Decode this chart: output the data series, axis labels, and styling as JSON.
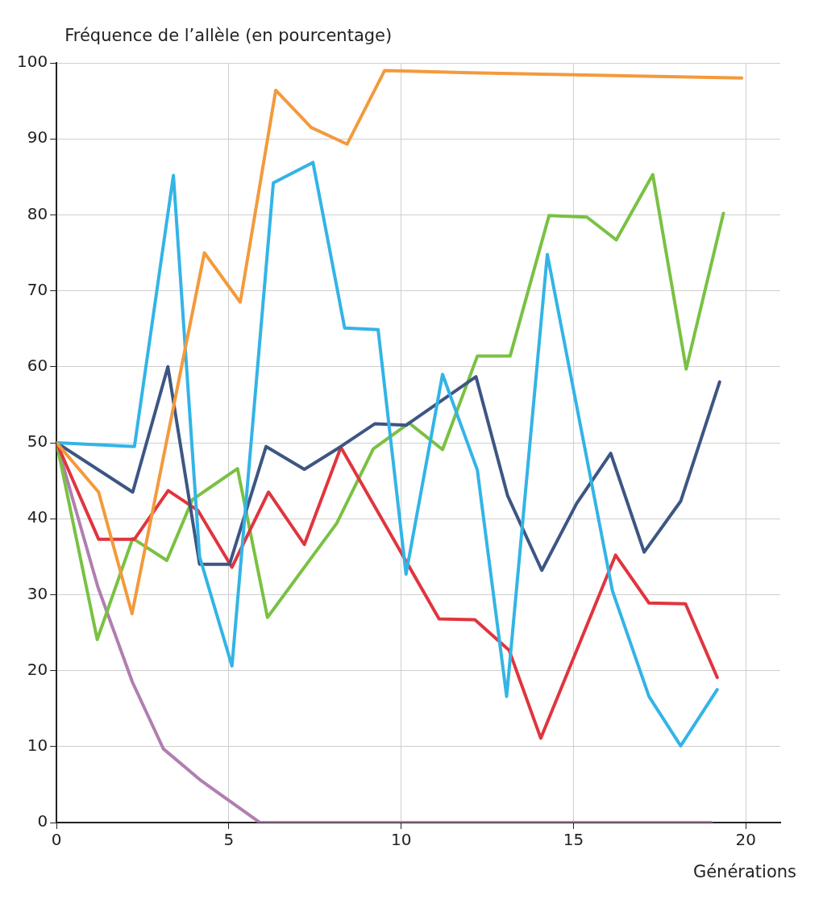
{
  "chart_data": {
    "type": "line",
    "ylabel": "Fréquence de l’allèle (en pourcentage)",
    "xlabel": "Générations",
    "xlim": [
      0,
      21
    ],
    "xticks": [
      0,
      5,
      10,
      15,
      20
    ],
    "ylim": [
      0,
      100
    ],
    "yticks": [
      0,
      10,
      20,
      30,
      40,
      50,
      60,
      70,
      80,
      90,
      100
    ],
    "grid": true,
    "line_style": "solid",
    "marker": "none",
    "legend": false,
    "series": [
      {
        "color": "#f39a3c",
        "x": [
          0,
          1.22,
          2.19,
          4.29,
          5.33,
          6.36,
          7.39,
          8.43,
          9.52,
          12,
          19.88
        ],
        "values": [
          50,
          43.5,
          27.5,
          75,
          68.5,
          96.4,
          91.5,
          89.3,
          99,
          98.7,
          98
        ]
      },
      {
        "color": "#33b4e6",
        "x": [
          0,
          2.26,
          3.39,
          4.15,
          5.09,
          6.29,
          7.44,
          8.36,
          9.33,
          10.14,
          11.2,
          12.21,
          13.06,
          14.24,
          16.13,
          17.19,
          18.11,
          19.17
        ],
        "values": [
          50,
          49.5,
          85.2,
          35,
          20.6,
          84.2,
          86.9,
          65.1,
          64.9,
          32.7,
          59,
          46.4,
          16.6,
          74.8,
          30.5,
          16.6,
          10.1,
          17.5
        ]
      },
      {
        "color": "#3d5683",
        "x": [
          0,
          2.21,
          3.23,
          4.15,
          5.02,
          6.08,
          7.19,
          8.25,
          9.24,
          10.14,
          12.17,
          13.09,
          14.08,
          15.09,
          16.08,
          17.05,
          18.11,
          19.24
        ],
        "values": [
          50,
          43.5,
          60,
          34,
          34,
          49.5,
          46.5,
          49.5,
          52.5,
          52.3,
          58.7,
          43,
          33.2,
          42,
          48.6,
          35.6,
          42.3,
          58
        ]
      },
      {
        "color": "#e0353f",
        "x": [
          0,
          1.22,
          2.26,
          3.24,
          4.1,
          5.09,
          6.15,
          7.19,
          8.25,
          11.1,
          12.14,
          13.13,
          14.05,
          16.22,
          17.19,
          18.25,
          19.17
        ],
        "values": [
          50,
          37.3,
          37.3,
          43.7,
          41.1,
          33.6,
          43.5,
          36.6,
          49.4,
          26.8,
          26.7,
          22.7,
          11.1,
          35.2,
          28.9,
          28.8,
          19.1
        ]
      },
      {
        "color": "#7ac143",
        "x": [
          0,
          1.18,
          2.21,
          3.2,
          3.94,
          5.25,
          6.12,
          8.13,
          9.19,
          10.23,
          11.2,
          12.21,
          13.16,
          14.29,
          15.39,
          16.24,
          17.3,
          18.27,
          19.35
        ],
        "values": [
          50,
          24.1,
          37.4,
          34.5,
          42.5,
          46.6,
          27,
          39.4,
          49.2,
          52.6,
          49.1,
          61.4,
          61.4,
          79.9,
          79.7,
          76.7,
          85.3,
          59.7,
          80.2
        ]
      },
      {
        "color": "#b07fb0",
        "x": [
          0,
          1.2,
          2.2,
          3.1,
          4.2,
          5.9,
          19
        ],
        "values": [
          50,
          31,
          18.5,
          9.7,
          5.5,
          0,
          0
        ]
      }
    ]
  }
}
